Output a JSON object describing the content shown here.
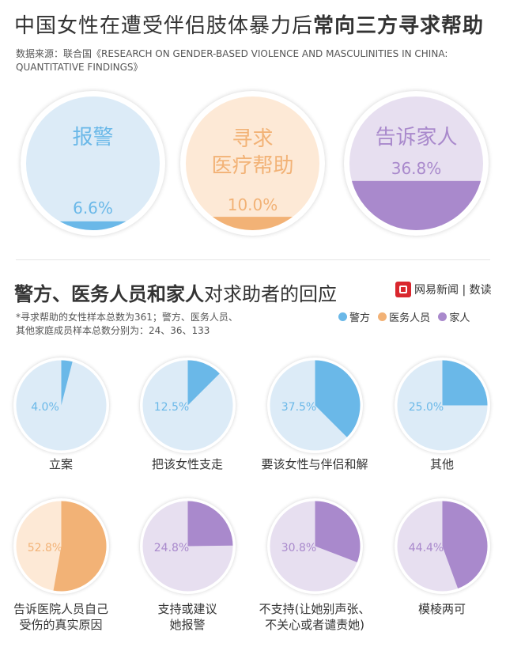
{
  "header": {
    "title_plain": "中国女性在遭受伴侣肢体暴力后",
    "title_bold": "常向三方寻求帮助",
    "source": "数据来源：联合国《RESEARCH ON GENDER-BASED VIOLENCE AND MASCULINITIES IN CHINA: QUANTITATIVE FINDINGS》"
  },
  "section2": {
    "title_bold": "警方、医务人员和家人",
    "title_plain": "对求助者的回应",
    "brand": "网易新闻 | 数读",
    "note": "*寻求帮助的女性样本总数为361；警方、医务人员、\n其他家庭成员样本总数分别为：24、36、133",
    "legend": [
      {
        "name": "警方",
        "color": "#6ab8e8"
      },
      {
        "name": "医务人员",
        "color": "#f2b276"
      },
      {
        "name": "家人",
        "color": "#a989cc"
      }
    ]
  },
  "colors": {
    "police_light": "#dcebf7",
    "police_dark": "#6ab8e8",
    "medical_light": "#fde9d6",
    "medical_dark": "#f2b276",
    "family_light": "#e7dff0",
    "family_dark": "#a989cc"
  },
  "chart_data": [
    {
      "type": "area",
      "title": "中国女性在遭受伴侣肢体暴力后常向三方寻求帮助",
      "categories": [
        "报警",
        "寻求医疗帮助",
        "告诉家人"
      ],
      "values": [
        6.6,
        10.0,
        36.8
      ],
      "value_labels": [
        "6.6%",
        "10.0%",
        "36.8%"
      ],
      "display_labels": [
        "报警",
        "寻求\n医疗帮助",
        "告诉家人"
      ],
      "unit": "%"
    },
    {
      "type": "pie",
      "title": "警方、医务人员和家人对求助者的回应",
      "groups": [
        "警方",
        "警方",
        "警方",
        "警方",
        "医务人员",
        "家人",
        "家人",
        "家人"
      ],
      "categories": [
        "立案",
        "把该女性支走",
        "要该女性与伴侣和解",
        "其他",
        "告诉医院人员自己受伤的真实原因",
        "支持或建议她报警",
        "不支持(让她别声张、不关心或者谴责她)",
        "模棱两可"
      ],
      "display_labels": [
        "立案",
        "把该女性支走",
        "要该女性与伴侣和解",
        "其他",
        "告诉医院人员自己\n受伤的真实原因",
        "支持或建议\n她报警",
        "不支持(让她别声张、\n不关心或者谴责她)",
        "模棱两可"
      ],
      "values": [
        4.0,
        12.5,
        37.5,
        25.0,
        52.8,
        24.8,
        30.8,
        44.4
      ],
      "value_labels": [
        "4.0%",
        "12.5%",
        "37.5%",
        "25.0%",
        "52.8%",
        "24.8%",
        "30.8%",
        "44.4%"
      ],
      "unit": "%"
    }
  ]
}
